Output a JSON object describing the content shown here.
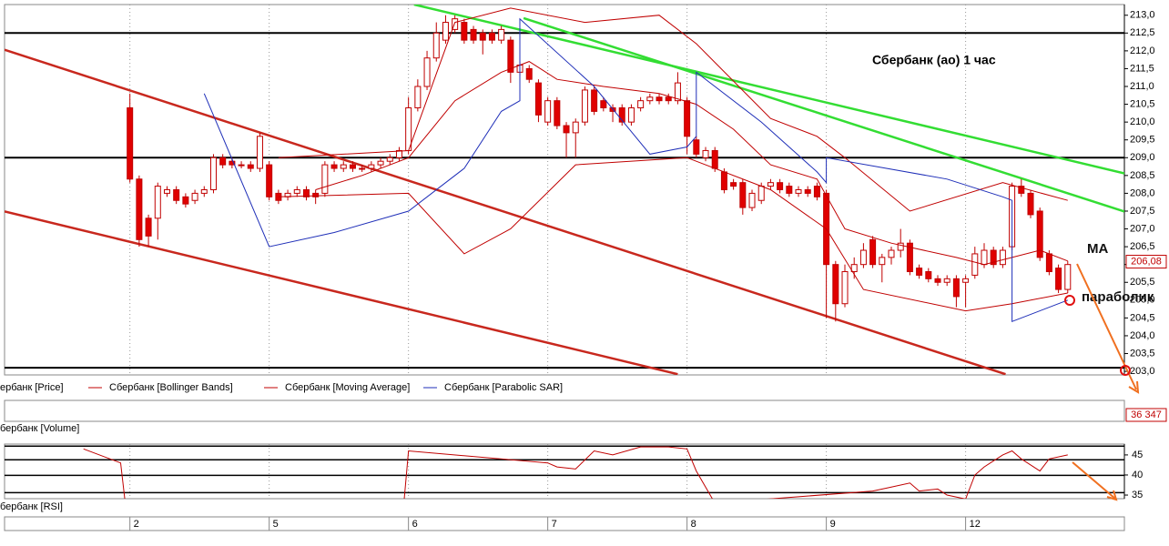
{
  "chart_data": [
    {
      "type": "candlestick",
      "title": "Сбербанк (ао)   1 час",
      "xlim": [
        -13.5,
        107.1
      ],
      "ylim": [
        202.9,
        213.3
      ],
      "yticks": [
        {
          "value": 203,
          "label": "203,0"
        },
        {
          "value": 203.5,
          "label": "203,5"
        },
        {
          "value": 204,
          "label": "204,0"
        },
        {
          "value": 204.5,
          "label": "204,5"
        },
        {
          "value": 205,
          "label": "205,0"
        },
        {
          "value": 205.5,
          "label": "205,5"
        },
        {
          "value": 206,
          "label": "206,0"
        },
        {
          "value": 206.5,
          "label": "206,5"
        },
        {
          "value": 207,
          "label": "207,0"
        },
        {
          "value": 207.5,
          "label": "207,5"
        },
        {
          "value": 208,
          "label": "208,0"
        },
        {
          "value": 208.5,
          "label": "208,5"
        },
        {
          "value": 209,
          "label": "209,0"
        },
        {
          "value": 209.5,
          "label": "209,5"
        },
        {
          "value": 210,
          "label": "210,0"
        },
        {
          "value": 210.5,
          "label": "210,5"
        },
        {
          "value": 211,
          "label": "211,0"
        },
        {
          "value": 211.5,
          "label": "211,5"
        },
        {
          "value": 212,
          "label": "212,0"
        },
        {
          "value": 212.5,
          "label": "212,5"
        },
        {
          "value": 213,
          "label": "213,0"
        }
      ],
      "xticks": [
        {
          "value": 0,
          "label": "2"
        },
        {
          "value": 15,
          "label": "5"
        },
        {
          "value": 30,
          "label": "6"
        },
        {
          "value": 45,
          "label": "7"
        },
        {
          "value": 60,
          "label": "8"
        },
        {
          "value": 75,
          "label": "9"
        },
        {
          "value": 90,
          "label": "12"
        }
      ],
      "up_color": "#ffffff",
      "down_color": "#e00000",
      "edge_color": "#c00000",
      "open": [
        210.4,
        208.4,
        207.3,
        207.3,
        208.0,
        208.1,
        207.9,
        207.8,
        208.0,
        208.1,
        209.0,
        208.9,
        208.8,
        208.8,
        208.7,
        208.8,
        208.0,
        207.9,
        208.0,
        208.1,
        208.0,
        208.0,
        208.8,
        208.7,
        208.8,
        208.7,
        208.7,
        208.8,
        208.9,
        209.0,
        209.2,
        210.4,
        211.0,
        211.8,
        212.3,
        212.6,
        212.8,
        212.6,
        212.5,
        212.5,
        212.3,
        212.3,
        211.4,
        211.5,
        211.1,
        210.0,
        210.6,
        209.9,
        209.7,
        210.0,
        210.9,
        210.6,
        210.4,
        210.4,
        210.0,
        210.4,
        210.6,
        210.7,
        210.7,
        210.6,
        210.6,
        209.5,
        209.0,
        209.2,
        208.6,
        208.3,
        208.3,
        207.6,
        207.8,
        208.2,
        208.3,
        208.2,
        208.0,
        208.1,
        208.2,
        208.0,
        206.0,
        204.9,
        205.8,
        206.0,
        206.7,
        206.0,
        206.2,
        206.4,
        206.6,
        205.9,
        205.8,
        205.6,
        205.5,
        205.6,
        205.5,
        205.7,
        206.0,
        206.4,
        206.0,
        206.5,
        208.2,
        208.0,
        207.5,
        206.3,
        205.9,
        205.3
      ],
      "high": [
        210.8,
        208.5,
        207.4,
        208.3,
        208.2,
        208.2,
        208.0,
        208.1,
        208.2,
        209.1,
        209.1,
        209.0,
        208.9,
        208.9,
        209.7,
        208.9,
        208.1,
        208.1,
        208.2,
        208.2,
        208.1,
        208.9,
        208.9,
        208.9,
        208.9,
        208.8,
        208.9,
        209.0,
        209.1,
        209.3,
        210.7,
        211.2,
        212.0,
        212.8,
        213.0,
        213.0,
        212.9,
        212.7,
        212.6,
        212.6,
        212.7,
        212.4,
        211.7,
        211.6,
        211.2,
        210.7,
        210.7,
        210.0,
        210.1,
        211.0,
        211.0,
        210.7,
        210.5,
        210.5,
        210.5,
        210.7,
        210.8,
        210.8,
        210.8,
        211.4,
        210.7,
        209.6,
        209.3,
        209.3,
        208.7,
        208.4,
        208.4,
        208.1,
        208.3,
        208.4,
        208.4,
        208.3,
        208.2,
        208.2,
        208.3,
        208.1,
        206.1,
        206.0,
        206.2,
        206.6,
        206.8,
        206.3,
        206.5,
        207.0,
        206.7,
        206.0,
        205.9,
        205.7,
        205.7,
        205.7,
        205.7,
        206.5,
        206.6,
        206.5,
        206.5,
        208.3,
        208.4,
        208.1,
        207.6,
        206.4,
        206.0,
        206.1
      ],
      "low": [
        208.3,
        206.5,
        206.5,
        206.7,
        207.9,
        207.7,
        207.6,
        207.7,
        207.9,
        208.0,
        208.7,
        208.7,
        208.7,
        208.6,
        208.6,
        207.8,
        207.7,
        207.8,
        207.9,
        207.8,
        207.7,
        207.9,
        208.6,
        208.6,
        208.6,
        208.6,
        208.6,
        208.7,
        208.8,
        208.9,
        209.1,
        210.3,
        210.9,
        211.7,
        212.2,
        212.5,
        212.2,
        212.2,
        211.9,
        212.2,
        212.2,
        211.1,
        211.3,
        211.1,
        210.0,
        209.9,
        209.8,
        209.0,
        209.0,
        209.9,
        210.2,
        210.3,
        210.0,
        209.9,
        209.9,
        210.3,
        210.5,
        210.5,
        210.5,
        210.5,
        209.1,
        209.0,
        208.9,
        208.6,
        208.0,
        208.1,
        207.4,
        207.5,
        207.7,
        208.1,
        208.0,
        207.9,
        207.9,
        207.9,
        207.8,
        204.5,
        204.4,
        204.8,
        205.6,
        205.9,
        205.9,
        205.5,
        206.0,
        206.2,
        205.7,
        205.6,
        205.5,
        205.4,
        205.4,
        204.8,
        204.8,
        205.6,
        205.9,
        205.9,
        205.9,
        206.4,
        207.9,
        207.3,
        206.1,
        205.7,
        205.2,
        205.2
      ],
      "close": [
        208.4,
        206.7,
        206.8,
        208.2,
        208.1,
        207.8,
        207.7,
        208.0,
        208.1,
        209.0,
        208.8,
        208.8,
        208.8,
        208.7,
        209.6,
        207.9,
        207.8,
        208.0,
        208.1,
        207.9,
        207.9,
        208.8,
        208.7,
        208.8,
        208.7,
        208.7,
        208.8,
        208.9,
        209.0,
        209.2,
        210.4,
        211.0,
        211.8,
        212.5,
        212.8,
        212.9,
        212.3,
        212.3,
        212.3,
        212.3,
        212.6,
        211.4,
        211.6,
        211.2,
        210.2,
        210.6,
        209.9,
        209.7,
        210.0,
        210.9,
        210.3,
        210.4,
        210.3,
        210.0,
        210.4,
        210.6,
        210.7,
        210.6,
        210.6,
        211.1,
        209.6,
        209.1,
        209.2,
        208.7,
        208.1,
        208.2,
        207.6,
        208.0,
        208.2,
        208.3,
        208.1,
        208.0,
        208.1,
        208.0,
        207.9,
        206.0,
        204.9,
        205.8,
        206.0,
        206.4,
        206.0,
        206.2,
        206.4,
        206.6,
        205.8,
        205.7,
        205.6,
        205.5,
        205.6,
        205.1,
        205.6,
        206.3,
        206.4,
        206.0,
        206.4,
        208.2,
        208.0,
        207.4,
        206.2,
        205.8,
        205.3,
        206.0
      ],
      "price_legend": "ербанк [Price]",
      "series": [
        {
          "name": "Сбербанк [Bollinger Bands]",
          "color": "#c00000",
          "x": [
            16,
            30,
            35,
            41,
            49,
            57,
            61,
            69,
            74,
            77,
            84,
            94,
            101
          ],
          "values": [
            209.0,
            209.2,
            212.8,
            213.2,
            212.8,
            213.0,
            212.2,
            210.1,
            209.6,
            209.0,
            207.5,
            208.3,
            207.8
          ],
          "x2": [
            16,
            30,
            36,
            41,
            48,
            60,
            69,
            75,
            79,
            90,
            95,
            101
          ],
          "values2": [
            207.9,
            208.0,
            206.3,
            207.0,
            208.8,
            209.0,
            208.1,
            207.0,
            205.3,
            204.7,
            204.9,
            205.2
          ]
        },
        {
          "name": "Сбербанк [Moving Average]",
          "color": "#c00000",
          "x": [
            20,
            25,
            30,
            35,
            40,
            43,
            46,
            51,
            57,
            61,
            65,
            69,
            74,
            77,
            82,
            89,
            92,
            98,
            101
          ],
          "values": [
            208.1,
            208.5,
            209.0,
            210.6,
            211.4,
            211.7,
            211.2,
            211.0,
            210.8,
            210.5,
            209.8,
            208.8,
            208.4,
            207.0,
            206.6,
            206.2,
            206.0,
            206.4,
            206.1
          ]
        },
        {
          "name": "Сбербанк [Parabolic SAR]",
          "color": "#1f2fb8",
          "x": [
            8,
            15,
            22,
            30,
            36,
            40,
            42,
            42,
            50,
            56,
            60,
            61,
            61,
            68,
            74,
            75,
            75,
            88,
            94,
            95,
            95,
            101
          ],
          "values": [
            210.8,
            206.5,
            206.9,
            207.5,
            208.7,
            210.3,
            210.6,
            212.9,
            211.0,
            209.1,
            209.3,
            209.6,
            211.4,
            210.0,
            208.6,
            208.3,
            209.0,
            208.4,
            207.9,
            207.8,
            204.4,
            205.0
          ]
        }
      ],
      "levels": [
        212.5,
        209.0,
        203.1
      ],
      "level_color": "#000000",
      "trendlines": [
        {
          "color": "#c8281e",
          "x": [
            -13.5,
            94.3
          ],
          "values": [
            212.03,
            202.92
          ]
        },
        {
          "color": "#c8281e",
          "x": [
            -13.5,
            59.0
          ],
          "values": [
            207.49,
            202.92
          ]
        },
        {
          "color": "#33dd33",
          "x": [
            30.6,
            107.1
          ],
          "values": [
            213.3,
            208.56
          ]
        },
        {
          "color": "#33dd33",
          "x": [
            42.4,
            107.1
          ],
          "values": [
            212.92,
            207.49
          ]
        }
      ],
      "last_price": {
        "value": 206.08,
        "label": "206,08"
      },
      "annotations": [
        "MA",
        "параболик"
      ]
    },
    {
      "type": "line",
      "title": "бербанк [RSI]",
      "color": "#c00000",
      "xlim": [
        -13.5,
        107.1
      ],
      "ylim": [
        34.1,
        47.7
      ],
      "yticks": [
        45,
        40,
        35
      ],
      "levels": [
        47.2,
        43.8,
        39.9,
        35.6
      ],
      "x": [
        -5,
        -1,
        -0.5,
        29.5,
        30,
        45,
        46,
        48,
        50,
        52,
        55,
        58,
        60,
        61,
        62,
        63,
        80,
        82,
        84,
        85,
        87,
        88,
        90,
        91,
        92,
        94,
        95,
        96,
        98,
        99,
        101
      ],
      "values": [
        46.5,
        43,
        33,
        33,
        46,
        43,
        42,
        41.5,
        46,
        45,
        47,
        47,
        46.5,
        41,
        37,
        33,
        36,
        37,
        38,
        36,
        36.5,
        35,
        34,
        40,
        42,
        45,
        46,
        44,
        41,
        44,
        45
      ]
    }
  ],
  "volume": {
    "title": "бербанк [Volume]",
    "last_value": "36 347"
  }
}
